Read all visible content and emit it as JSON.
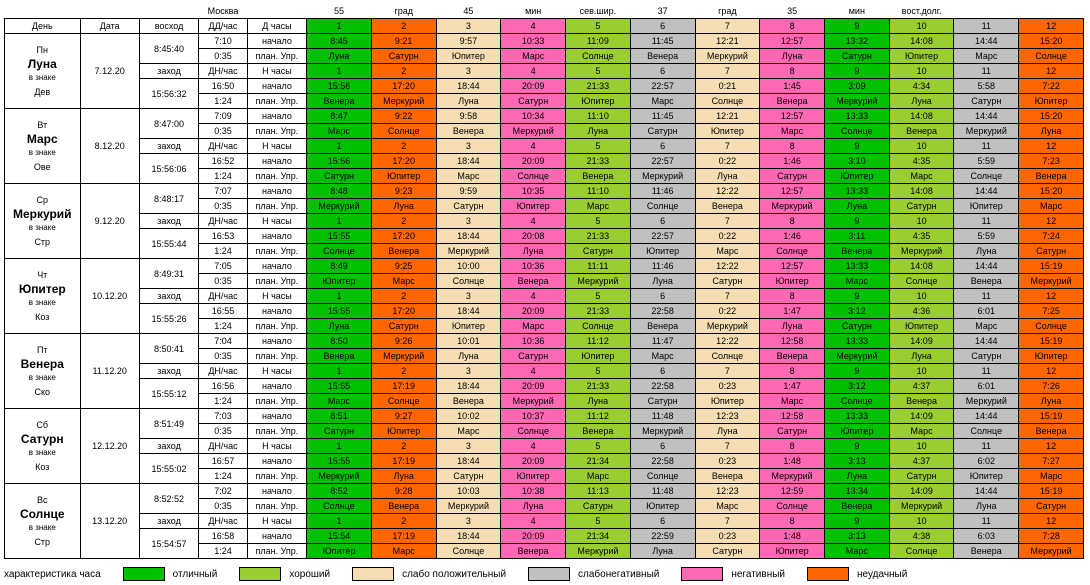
{
  "colors": {
    "c1": "#00c000",
    "c2": "#9acd32",
    "c3": "#f5deb3",
    "c4": "#c0c0c0",
    "c5": "#ff69b4",
    "c6": "#ff6600"
  },
  "legend_label": "характеристика часа",
  "legend_items": [
    {
      "c": "c1",
      "t": "отличный"
    },
    {
      "c": "c2",
      "t": "хороший"
    },
    {
      "c": "c3",
      "t": "слабо положительный"
    },
    {
      "c": "c4",
      "t": "слабонегативный"
    },
    {
      "c": "c5",
      "t": "негативный"
    },
    {
      "c": "c6",
      "t": "неудачный"
    }
  ],
  "header_row1": [
    "",
    "",
    "",
    "Москва",
    "55",
    "град",
    "45",
    "мин",
    "сев.шир.",
    "37",
    "град",
    "35",
    "мин",
    "вост.долг.",
    ""
  ],
  "header_row2": [
    "День",
    "Дата",
    "восход",
    "ДД/час",
    "Д часы",
    "1",
    "2",
    "3",
    "4",
    "5",
    "6",
    "7",
    "8",
    "9",
    "10",
    "11",
    "12"
  ],
  "header_row2_colors": [
    "",
    "",
    "",
    "",
    "",
    "c1",
    "c6",
    "c3",
    "c5",
    "c2",
    "c4",
    "c3",
    "c5",
    "c1",
    "c2",
    "c4",
    "c6"
  ],
  "nhours_label": "Н часы",
  "nhours_colors": [
    "c1",
    "c6",
    "c3",
    "c5",
    "c2",
    "c4",
    "c3",
    "c5",
    "c1",
    "c2",
    "c4",
    "c6"
  ],
  "nhours_nums": [
    "1",
    "2",
    "3",
    "4",
    "5",
    "6",
    "7",
    "8",
    "9",
    "10",
    "11",
    "12"
  ],
  "labels": {
    "dd": "ДД/час",
    "dn": "ДН/час",
    "start": "начало",
    "plan": "план. Упр.",
    "rise": "восход",
    "set": "заход",
    "inSign": "в знаке"
  },
  "days": [
    {
      "dow": "Пн",
      "planet": "Луна",
      "sign": "Дев",
      "date": "7.12.20",
      "rise": "8:45:40",
      "set": "15:56:32",
      "dd_dur": "0:35",
      "dn_dur": "1:24",
      "r1": {
        "t": "7:10",
        "v": [
          "8:45",
          "9:21",
          "9:57",
          "10:33",
          "11:09",
          "11:45",
          "12:21",
          "12:57",
          "13:32",
          "14:08",
          "14:44",
          "15:20"
        ],
        "c": [
          "c1",
          "c6",
          "c3",
          "c5",
          "c2",
          "c4",
          "c3",
          "c5",
          "c1",
          "c2",
          "c4",
          "c6"
        ]
      },
      "r2": {
        "v": [
          "Луна",
          "Сатурн",
          "Юпитер",
          "Марс",
          "Солнце",
          "Венера",
          "Меркурий",
          "Луна",
          "Сатурн",
          "Юпитер",
          "Марс",
          "Солнце"
        ],
        "c": [
          "c1",
          "c6",
          "c3",
          "c5",
          "c2",
          "c4",
          "c3",
          "c5",
          "c1",
          "c2",
          "c4",
          "c6"
        ]
      },
      "r3": {
        "t": "16:50",
        "v": [
          "15:56",
          "17:20",
          "18:44",
          "20:09",
          "21:33",
          "22:57",
          "0:21",
          "1:45",
          "3:09",
          "4:34",
          "5:58",
          "7:22"
        ],
        "c": [
          "c1",
          "c6",
          "c3",
          "c5",
          "c2",
          "c4",
          "c3",
          "c5",
          "c1",
          "c2",
          "c4",
          "c6"
        ]
      },
      "r4": {
        "v": [
          "Венера",
          "Меркурий",
          "Луна",
          "Сатурн",
          "Юпитер",
          "Марс",
          "Солнце",
          "Венера",
          "Меркурий",
          "Луна",
          "Сатурн",
          "Юпитер"
        ],
        "c": [
          "c1",
          "c6",
          "c3",
          "c5",
          "c2",
          "c4",
          "c3",
          "c5",
          "c1",
          "c2",
          "c4",
          "c6"
        ]
      }
    },
    {
      "dow": "Вт",
      "planet": "Марс",
      "sign": "Ове",
      "date": "8.12.20",
      "rise": "8:47:00",
      "set": "15:56:06",
      "dd_dur": "0:35",
      "dn_dur": "1:24",
      "r1": {
        "t": "7:09",
        "v": [
          "8:47",
          "9:22",
          "9:58",
          "10:34",
          "11:10",
          "11:45",
          "12:21",
          "12:57",
          "13:33",
          "14:08",
          "14:44",
          "15:20"
        ],
        "c": [
          "c1",
          "c6",
          "c3",
          "c5",
          "c2",
          "c4",
          "c3",
          "c5",
          "c1",
          "c2",
          "c4",
          "c6"
        ]
      },
      "r2": {
        "v": [
          "Марс",
          "Солнце",
          "Венера",
          "Меркурий",
          "Луна",
          "Сатурн",
          "Юпитер",
          "Марс",
          "Солнце",
          "Венера",
          "Меркурий",
          "Луна"
        ],
        "c": [
          "c1",
          "c6",
          "c3",
          "c5",
          "c2",
          "c4",
          "c3",
          "c5",
          "c1",
          "c2",
          "c4",
          "c6"
        ]
      },
      "r3": {
        "t": "16:52",
        "v": [
          "15:56",
          "17:20",
          "18:44",
          "20:09",
          "21:33",
          "22:57",
          "0:22",
          "1:46",
          "3:10",
          "4:35",
          "5:59",
          "7:23"
        ],
        "c": [
          "c1",
          "c6",
          "c3",
          "c5",
          "c2",
          "c4",
          "c3",
          "c5",
          "c1",
          "c2",
          "c4",
          "c6"
        ]
      },
      "r4": {
        "v": [
          "Сатурн",
          "Юпитер",
          "Марс",
          "Солнце",
          "Венера",
          "Меркурий",
          "Луна",
          "Сатурн",
          "Юпитер",
          "Марс",
          "Солнце",
          "Венера"
        ],
        "c": [
          "c1",
          "c6",
          "c3",
          "c5",
          "c2",
          "c4",
          "c3",
          "c5",
          "c1",
          "c2",
          "c4",
          "c6"
        ]
      }
    },
    {
      "dow": "Ср",
      "planet": "Меркурий",
      "sign": "Стр",
      "date": "9.12.20",
      "rise": "8:48:17",
      "set": "15:55:44",
      "dd_dur": "0:35",
      "dn_dur": "1:24",
      "r1": {
        "t": "7:07",
        "v": [
          "8:48",
          "9:23",
          "9:59",
          "10:35",
          "11:10",
          "11:46",
          "12:22",
          "12:57",
          "13:33",
          "14:08",
          "14:44",
          "15:20"
        ],
        "c": [
          "c1",
          "c6",
          "c3",
          "c5",
          "c2",
          "c4",
          "c3",
          "c5",
          "c1",
          "c2",
          "c4",
          "c6"
        ]
      },
      "r2": {
        "v": [
          "Меркурий",
          "Луна",
          "Сатурн",
          "Юпитер",
          "Марс",
          "Солнце",
          "Венера",
          "Меркурий",
          "Луна",
          "Сатурн",
          "Юпитер",
          "Марс"
        ],
        "c": [
          "c1",
          "c6",
          "c3",
          "c5",
          "c2",
          "c4",
          "c3",
          "c5",
          "c1",
          "c2",
          "c4",
          "c6"
        ]
      },
      "r3": {
        "t": "16:53",
        "v": [
          "15:55",
          "17:20",
          "18:44",
          "20:08",
          "21:33",
          "22:57",
          "0:22",
          "1:46",
          "3:11",
          "4:35",
          "5:59",
          "7:24"
        ],
        "c": [
          "c1",
          "c6",
          "c3",
          "c5",
          "c2",
          "c4",
          "c3",
          "c5",
          "c1",
          "c2",
          "c4",
          "c6"
        ]
      },
      "r4": {
        "v": [
          "Солнце",
          "Венера",
          "Меркурий",
          "Луна",
          "Сатурн",
          "Юпитер",
          "Марс",
          "Солнце",
          "Венера",
          "Меркурий",
          "Луна",
          "Сатурн"
        ],
        "c": [
          "c1",
          "c6",
          "c3",
          "c5",
          "c2",
          "c4",
          "c3",
          "c5",
          "c1",
          "c2",
          "c4",
          "c6"
        ]
      }
    },
    {
      "dow": "Чт",
      "planet": "Юпитер",
      "sign": "Коз",
      "date": "10.12.20",
      "rise": "8:49:31",
      "set": "15:55:26",
      "dd_dur": "0:35",
      "dn_dur": "1:24",
      "r1": {
        "t": "7:05",
        "v": [
          "8:49",
          "9:25",
          "10:00",
          "10:36",
          "11:11",
          "11:46",
          "12:22",
          "12:57",
          "13:33",
          "14:08",
          "14:44",
          "15:19"
        ],
        "c": [
          "c1",
          "c6",
          "c3",
          "c5",
          "c2",
          "c4",
          "c3",
          "c5",
          "c1",
          "c2",
          "c4",
          "c6"
        ]
      },
      "r2": {
        "v": [
          "Юпитер",
          "Марс",
          "Солнце",
          "Венера",
          "Меркурий",
          "Луна",
          "Сатурн",
          "Юпитер",
          "Марс",
          "Солнце",
          "Венера",
          "Меркурий"
        ],
        "c": [
          "c1",
          "c6",
          "c3",
          "c5",
          "c2",
          "c4",
          "c3",
          "c5",
          "c1",
          "c2",
          "c4",
          "c6"
        ]
      },
      "r3": {
        "t": "16:55",
        "v": [
          "15:55",
          "17:20",
          "18:44",
          "20:09",
          "21:33",
          "22:58",
          "0:22",
          "1:47",
          "3:12",
          "4:36",
          "6:01",
          "7:25"
        ],
        "c": [
          "c1",
          "c6",
          "c3",
          "c5",
          "c2",
          "c4",
          "c3",
          "c5",
          "c1",
          "c2",
          "c4",
          "c6"
        ]
      },
      "r4": {
        "v": [
          "Луна",
          "Сатурн",
          "Юпитер",
          "Марс",
          "Солнце",
          "Венера",
          "Меркурий",
          "Луна",
          "Сатурн",
          "Юпитер",
          "Марс",
          "Солнце"
        ],
        "c": [
          "c1",
          "c6",
          "c3",
          "c5",
          "c2",
          "c4",
          "c3",
          "c5",
          "c1",
          "c2",
          "c4",
          "c6"
        ]
      }
    },
    {
      "dow": "Пт",
      "planet": "Венера",
      "sign": "Ско",
      "date": "11.12.20",
      "rise": "8:50:41",
      "set": "15:55:12",
      "dd_dur": "0:35",
      "dn_dur": "1:24",
      "r1": {
        "t": "7:04",
        "v": [
          "8:50",
          "9:26",
          "10:01",
          "10:36",
          "11:12",
          "11:47",
          "12:22",
          "12:58",
          "13:33",
          "14:09",
          "14:44",
          "15:19"
        ],
        "c": [
          "c1",
          "c6",
          "c3",
          "c5",
          "c2",
          "c4",
          "c3",
          "c5",
          "c1",
          "c2",
          "c4",
          "c6"
        ]
      },
      "r2": {
        "v": [
          "Венера",
          "Меркурий",
          "Луна",
          "Сатурн",
          "Юпитер",
          "Марс",
          "Солнце",
          "Венера",
          "Меркурий",
          "Луна",
          "Сатурн",
          "Юпитер"
        ],
        "c": [
          "c1",
          "c6",
          "c3",
          "c5",
          "c2",
          "c4",
          "c3",
          "c5",
          "c1",
          "c2",
          "c4",
          "c6"
        ]
      },
      "r3": {
        "t": "16:56",
        "v": [
          "15:55",
          "17:19",
          "18:44",
          "20:09",
          "21:33",
          "22:58",
          "0:23",
          "1:47",
          "3:12",
          "4:37",
          "6:01",
          "7:26"
        ],
        "c": [
          "c1",
          "c6",
          "c3",
          "c5",
          "c2",
          "c4",
          "c3",
          "c5",
          "c1",
          "c2",
          "c4",
          "c6"
        ]
      },
      "r4": {
        "v": [
          "Марс",
          "Солнце",
          "Венера",
          "Меркурий",
          "Луна",
          "Сатурн",
          "Юпитер",
          "Марс",
          "Солнце",
          "Венера",
          "Меркурий",
          "Луна"
        ],
        "c": [
          "c1",
          "c6",
          "c3",
          "c5",
          "c2",
          "c4",
          "c3",
          "c5",
          "c1",
          "c2",
          "c4",
          "c6"
        ]
      }
    },
    {
      "dow": "Сб",
      "planet": "Сатурн",
      "sign": "Коз",
      "date": "12.12.20",
      "rise": "8:51:49",
      "set": "15:55:02",
      "dd_dur": "0:35",
      "dn_dur": "1:24",
      "r1": {
        "t": "7:03",
        "v": [
          "8:51",
          "9:27",
          "10:02",
          "10:37",
          "11:12",
          "11:48",
          "12:23",
          "12:58",
          "13:33",
          "14:09",
          "14:44",
          "15:19"
        ],
        "c": [
          "c1",
          "c6",
          "c3",
          "c5",
          "c2",
          "c4",
          "c3",
          "c5",
          "c1",
          "c2",
          "c4",
          "c6"
        ]
      },
      "r2": {
        "v": [
          "Сатурн",
          "Юпитер",
          "Марс",
          "Солнце",
          "Венера",
          "Меркурий",
          "Луна",
          "Сатурн",
          "Юпитер",
          "Марс",
          "Солнце",
          "Венера"
        ],
        "c": [
          "c1",
          "c6",
          "c3",
          "c5",
          "c2",
          "c4",
          "c3",
          "c5",
          "c1",
          "c2",
          "c4",
          "c6"
        ]
      },
      "r3": {
        "t": "16:57",
        "v": [
          "15:55",
          "17:19",
          "18:44",
          "20:09",
          "21:34",
          "22:58",
          "0:23",
          "1:48",
          "3:13",
          "4:37",
          "6:02",
          "7:27"
        ],
        "c": [
          "c1",
          "c6",
          "c3",
          "c5",
          "c2",
          "c4",
          "c3",
          "c5",
          "c1",
          "c2",
          "c4",
          "c6"
        ]
      },
      "r4": {
        "v": [
          "Меркурий",
          "Луна",
          "Сатурн",
          "Юпитер",
          "Марс",
          "Солнце",
          "Венера",
          "Меркурий",
          "Луна",
          "Сатурн",
          "Юпитер",
          "Марс"
        ],
        "c": [
          "c1",
          "c6",
          "c3",
          "c5",
          "c2",
          "c4",
          "c3",
          "c5",
          "c1",
          "c2",
          "c4",
          "c6"
        ]
      }
    },
    {
      "dow": "Вс",
      "planet": "Солнце",
      "sign": "Стр",
      "date": "13.12.20",
      "rise": "8:52:52",
      "set": "15:54:57",
      "dd_dur": "0:35",
      "dn_dur": "1:24",
      "r1": {
        "t": "7:02",
        "v": [
          "8:52",
          "9:28",
          "10:03",
          "10:38",
          "11:13",
          "11:48",
          "12:23",
          "12:59",
          "13:34",
          "14:09",
          "14:44",
          "15:19"
        ],
        "c": [
          "c1",
          "c6",
          "c3",
          "c5",
          "c2",
          "c4",
          "c3",
          "c5",
          "c1",
          "c2",
          "c4",
          "c6"
        ]
      },
      "r2": {
        "v": [
          "Солнце",
          "Венера",
          "Меркурий",
          "Луна",
          "Сатурн",
          "Юпитер",
          "Марс",
          "Солнце",
          "Венера",
          "Меркурий",
          "Луна",
          "Сатурн"
        ],
        "c": [
          "c1",
          "c6",
          "c3",
          "c5",
          "c2",
          "c4",
          "c3",
          "c5",
          "c1",
          "c2",
          "c4",
          "c6"
        ]
      },
      "r3": {
        "t": "16:58",
        "v": [
          "15:54",
          "17:19",
          "18:44",
          "20:09",
          "21:34",
          "22:59",
          "0:23",
          "1:48",
          "3:13",
          "4:38",
          "6:03",
          "7:28"
        ],
        "c": [
          "c1",
          "c6",
          "c3",
          "c5",
          "c2",
          "c4",
          "c3",
          "c5",
          "c1",
          "c2",
          "c4",
          "c6"
        ]
      },
      "r4": {
        "v": [
          "Юпитер",
          "Марс",
          "Солнце",
          "Венера",
          "Меркурий",
          "Луна",
          "Сатурн",
          "Юпитер",
          "Марс",
          "Солнце",
          "Венера",
          "Меркурий"
        ],
        "c": [
          "c1",
          "c6",
          "c3",
          "c5",
          "c2",
          "c4",
          "c3",
          "c5",
          "c1",
          "c2",
          "c4",
          "c6"
        ]
      }
    }
  ]
}
